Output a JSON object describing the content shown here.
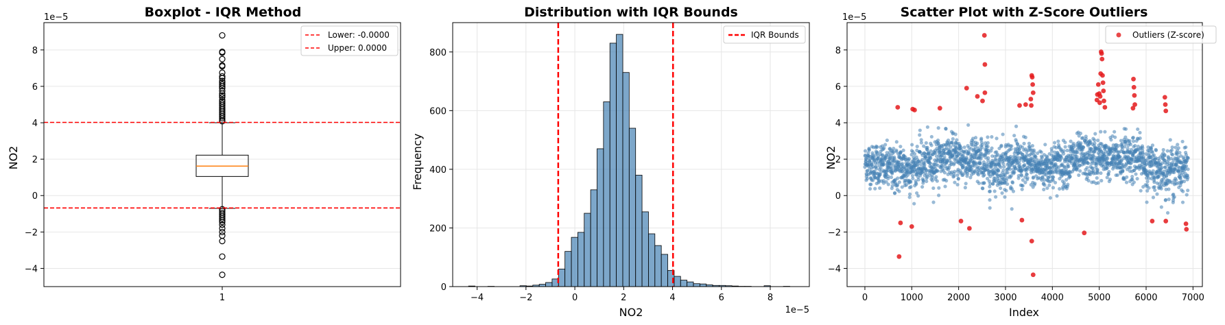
{
  "chart_data": [
    {
      "type": "box",
      "title": "Boxplot - IQR Method",
      "xlabel": "",
      "ylabel": "NO2",
      "y_offset_label": "1e−5",
      "y_scale": 1e-05,
      "categories": [
        "1"
      ],
      "ylim": [
        -5.0,
        9.5
      ],
      "yticks": [
        -4,
        -2,
        0,
        2,
        4,
        6,
        8
      ],
      "ytick_labels": [
        "−4",
        "−2",
        "0",
        "2",
        "4",
        "6",
        "8"
      ],
      "box": {
        "q1": 1.05,
        "median": 1.62,
        "q3": 2.22,
        "whisker_low": -0.7,
        "whisker_high": 4.0
      },
      "outliers": [
        8.8,
        7.9,
        7.85,
        7.5,
        7.15,
        7.1,
        6.75,
        6.55,
        6.45,
        6.3,
        6.2,
        6.1,
        6.0,
        5.9,
        5.75,
        5.6,
        5.5,
        5.4,
        5.25,
        5.15,
        5.05,
        4.95,
        4.85,
        4.75,
        4.65,
        4.55,
        4.45,
        4.35,
        4.25,
        4.15,
        4.08,
        -0.75,
        -0.85,
        -0.95,
        -1.05,
        -1.15,
        -1.25,
        -1.35,
        -1.45,
        -1.6,
        -1.8,
        -2.0,
        -2.2,
        -2.5,
        -3.35,
        -4.35
      ],
      "hlines": [
        {
          "name": "Lower: -0.0000",
          "value": -0.68,
          "color": "#ff0000"
        },
        {
          "name": "Upper: 0.0000",
          "value": 4.02,
          "color": "#ff0000"
        }
      ],
      "legend_placement": "upper right",
      "grid": true
    },
    {
      "type": "histogram",
      "title": "Distribution with IQR Bounds",
      "xlabel": "NO2",
      "ylabel": "Frequency",
      "x_offset_label": "1e−5",
      "x_scale": 1e-05,
      "xlim": [
        -5.0,
        9.6
      ],
      "ylim": [
        0,
        900
      ],
      "xticks": [
        -4,
        -2,
        0,
        2,
        4,
        6,
        8
      ],
      "xtick_labels": [
        "−4",
        "−2",
        "0",
        "2",
        "4",
        "6",
        "8"
      ],
      "yticks": [
        0,
        200,
        400,
        600,
        800
      ],
      "ytick_labels": [
        "0",
        "200",
        "400",
        "600",
        "800"
      ],
      "bin_start": -4.35,
      "bin_width": 0.263,
      "counts": [
        2,
        0,
        0,
        1,
        0,
        0,
        0,
        0,
        3,
        2,
        5,
        8,
        14,
        26,
        60,
        120,
        168,
        185,
        250,
        330,
        470,
        630,
        830,
        860,
        730,
        540,
        380,
        255,
        180,
        140,
        110,
        55,
        35,
        22,
        16,
        10,
        9,
        6,
        4,
        4,
        3,
        2,
        1,
        1,
        0,
        0,
        3,
        0,
        0,
        1
      ],
      "bar_color": "#4682b4",
      "vlines": [
        {
          "name": "IQR Bounds",
          "values": [
            -0.68,
            4.02
          ],
          "color": "#ff0000"
        }
      ],
      "legend_placement": "upper right",
      "grid": true
    },
    {
      "type": "scatter",
      "title": "Scatter Plot with Z-Score Outliers",
      "xlabel": "Index",
      "ylabel": "NO2",
      "y_offset_label": "1e−5",
      "y_scale": 1e-05,
      "xlim": [
        -380,
        7200
      ],
      "ylim": [
        -5.0,
        9.5
      ],
      "xticks": [
        0,
        1000,
        2000,
        3000,
        4000,
        5000,
        6000,
        7000
      ],
      "xtick_labels": [
        "0",
        "1000",
        "2000",
        "3000",
        "4000",
        "5000",
        "6000",
        "7000"
      ],
      "yticks": [
        -4,
        -2,
        0,
        2,
        4,
        6,
        8
      ],
      "ytick_labels": [
        "−4",
        "−2",
        "0",
        "2",
        "4",
        "6",
        "8"
      ],
      "series": [
        {
          "name": "",
          "color": "#4682b4",
          "approx_count": 6900,
          "x_range": [
            0,
            6900
          ],
          "profile": [
            {
              "x": 0,
              "mean": 1.8,
              "sd": 0.75
            },
            {
              "x": 500,
              "mean": 1.5,
              "sd": 0.9
            },
            {
              "x": 900,
              "mean": 1.5,
              "sd": 0.95
            },
            {
              "x": 1300,
              "mean": 1.7,
              "sd": 0.95
            },
            {
              "x": 1700,
              "mean": 2.2,
              "sd": 0.9
            },
            {
              "x": 2200,
              "mean": 1.9,
              "sd": 0.95
            },
            {
              "x": 2700,
              "mean": 1.6,
              "sd": 1.0
            },
            {
              "x": 3200,
              "mean": 1.8,
              "sd": 0.95
            },
            {
              "x": 3700,
              "mean": 1.5,
              "sd": 0.9
            },
            {
              "x": 4200,
              "mean": 1.8,
              "sd": 0.9
            },
            {
              "x": 4700,
              "mean": 2.0,
              "sd": 0.95
            },
            {
              "x": 5200,
              "mean": 2.0,
              "sd": 0.9
            },
            {
              "x": 5700,
              "mean": 2.2,
              "sd": 0.9
            },
            {
              "x": 6100,
              "mean": 1.5,
              "sd": 0.9
            },
            {
              "x": 6500,
              "mean": 1.4,
              "sd": 0.95
            },
            {
              "x": 6900,
              "mean": 1.6,
              "sd": 0.95
            }
          ]
        },
        {
          "name": "Outliers (Z-score)",
          "color": "#e41a1c",
          "points": [
            [
              700,
              4.85
            ],
            [
              760,
              -1.5
            ],
            [
              730,
              -3.35
            ],
            [
              1020,
              4.75
            ],
            [
              1060,
              4.7
            ],
            [
              1000,
              -1.7
            ],
            [
              1600,
              4.8
            ],
            [
              2050,
              -1.4
            ],
            [
              2170,
              5.9
            ],
            [
              2230,
              -1.8
            ],
            [
              2400,
              5.45
            ],
            [
              2510,
              5.2
            ],
            [
              2550,
              8.8
            ],
            [
              2560,
              7.2
            ],
            [
              2560,
              5.65
            ],
            [
              3300,
              4.95
            ],
            [
              3350,
              -1.35
            ],
            [
              3430,
              5.0
            ],
            [
              3540,
              5.3
            ],
            [
              3550,
              4.95
            ],
            [
              3560,
              6.6
            ],
            [
              3570,
              6.5
            ],
            [
              3580,
              6.1
            ],
            [
              3590,
              5.65
            ],
            [
              3560,
              -2.5
            ],
            [
              3590,
              -4.35
            ],
            [
              4680,
              -2.05
            ],
            [
              4950,
              5.25
            ],
            [
              4960,
              5.55
            ],
            [
              4980,
              6.1
            ],
            [
              5000,
              5.6
            ],
            [
              5010,
              5.1
            ],
            [
              5020,
              5.45
            ],
            [
              5030,
              6.7
            ],
            [
              5040,
              7.9
            ],
            [
              5050,
              7.8
            ],
            [
              5060,
              7.5
            ],
            [
              5070,
              6.6
            ],
            [
              5080,
              6.2
            ],
            [
              5090,
              5.75
            ],
            [
              5100,
              5.2
            ],
            [
              5120,
              4.85
            ],
            [
              5730,
              6.4
            ],
            [
              5740,
              5.95
            ],
            [
              5750,
              5.5
            ],
            [
              5760,
              5.0
            ],
            [
              5720,
              4.8
            ],
            [
              6130,
              -1.4
            ],
            [
              6400,
              5.4
            ],
            [
              6410,
              5.0
            ],
            [
              6420,
              4.65
            ],
            [
              6420,
              -1.4
            ],
            [
              6850,
              -1.55
            ],
            [
              6860,
              -1.85
            ]
          ]
        }
      ],
      "legend_placement": "upper right",
      "grid": true
    }
  ]
}
